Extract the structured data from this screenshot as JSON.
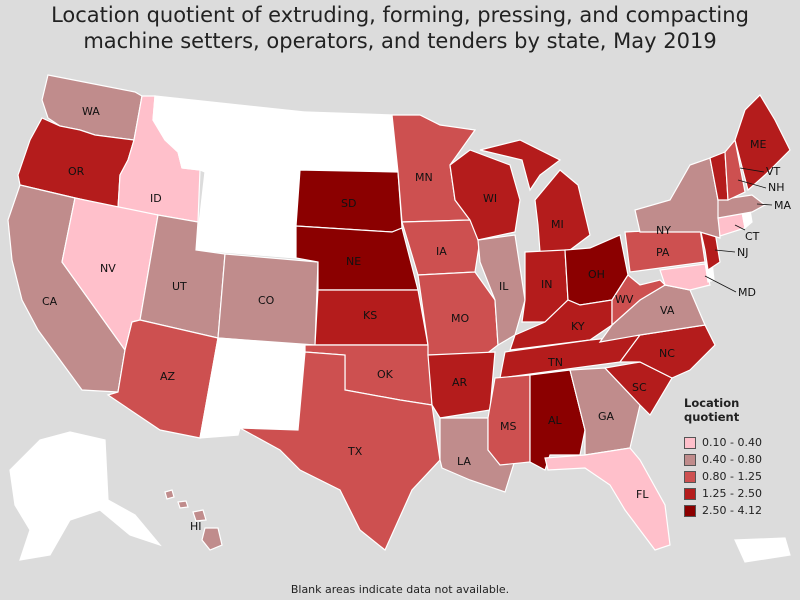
{
  "title_line1": "Location quotient of extruding, forming, pressing, and compacting",
  "title_line2": "machine setters, operators, and tenders by state, May 2019",
  "footnote": "Blank areas indicate data not available.",
  "legend": {
    "title": "Location quotient",
    "items": [
      {
        "label": "0.10 - 0.40",
        "color": "#ffc0cb"
      },
      {
        "label": "0.40 - 0.80",
        "color": "#c08c8c"
      },
      {
        "label": "0.80 - 1.25",
        "color": "#cd5050"
      },
      {
        "label": "1.25 - 2.50",
        "color": "#b41c1c"
      },
      {
        "label": "2.50 - 4.12",
        "color": "#8b0000"
      }
    ]
  },
  "colors": {
    "nodata": "#ffffff",
    "c1": "#ffc0cb",
    "c2": "#c08c8c",
    "c3": "#cd5050",
    "c4": "#b41c1c",
    "c5": "#8b0000"
  },
  "states": {
    "WA": "WA",
    "OR": "OR",
    "CA": "CA",
    "ID": "ID",
    "NV": "NV",
    "UT": "UT",
    "AZ": "AZ",
    "CO": "CO",
    "SD": "SD",
    "NE": "NE",
    "KS": "KS",
    "OK": "OK",
    "TX": "TX",
    "MN": "MN",
    "IA": "IA",
    "MO": "MO",
    "AR": "AR",
    "LA": "LA",
    "WI": "WI",
    "IL": "IL",
    "MS": "MS",
    "MI": "MI",
    "IN": "IN",
    "KY": "KY",
    "TN": "TN",
    "AL": "AL",
    "OH": "OH",
    "WV": "WV",
    "GA": "GA",
    "FL": "FL",
    "SC": "SC",
    "NC": "NC",
    "VA": "VA",
    "PA": "PA",
    "NY": "NY",
    "ME": "ME",
    "VT": "VT",
    "NH": "NH",
    "MA": "MA",
    "CT": "CT",
    "NJ": "NJ",
    "MD": "MD",
    "HI": "HI"
  }
}
